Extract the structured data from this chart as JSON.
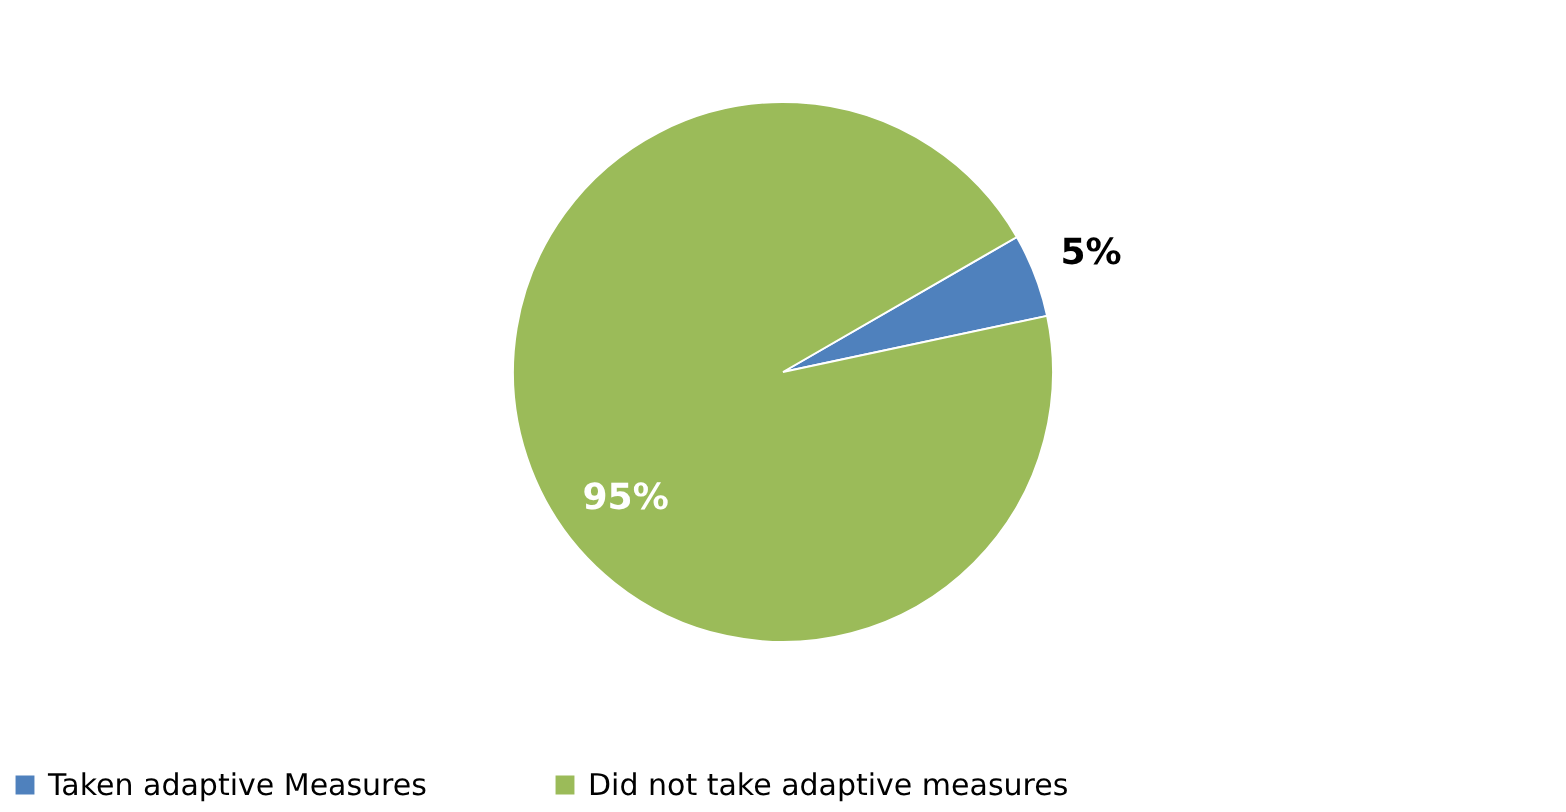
{
  "chart_data": {
    "type": "pie",
    "categories": [
      "Taken adaptive Measures",
      "Did not take adaptive measures"
    ],
    "values": [
      5,
      95
    ],
    "colors": [
      "#4f81bd",
      "#9bbb59"
    ],
    "value_labels": [
      "5%",
      "95%"
    ],
    "legend": "bottom"
  }
}
